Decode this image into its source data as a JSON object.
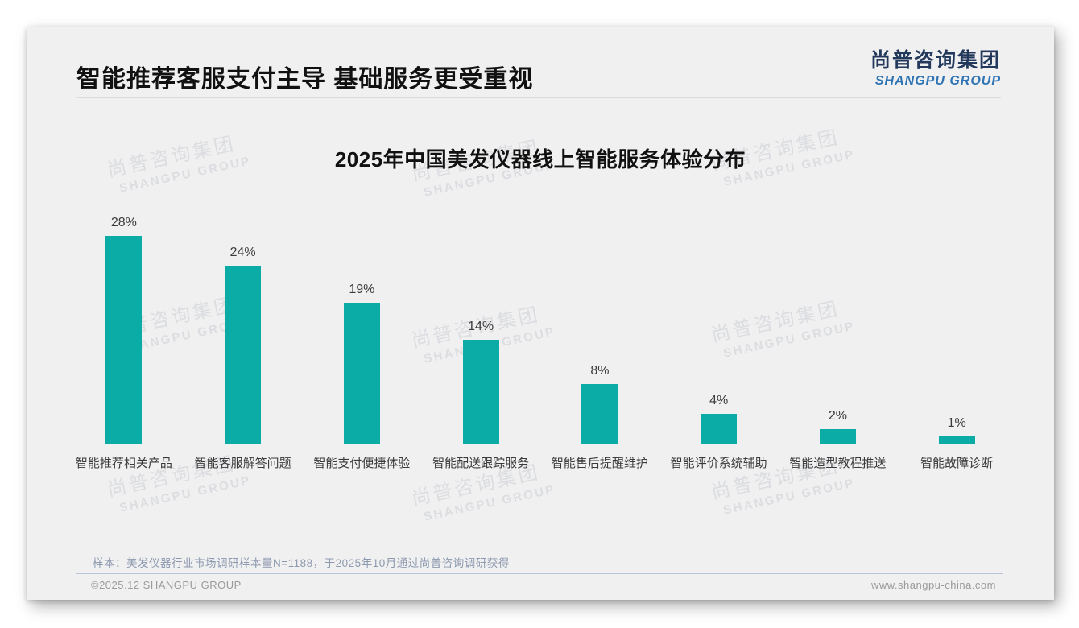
{
  "page": {
    "title": "智能推荐客服支付主导 基础服务更受重视",
    "logo": {
      "cn": "尚普咨询集团",
      "en": "SHANGPU GROUP"
    },
    "watermark": {
      "cn": "尚普咨询集团",
      "en": "SHANGPU GROUP"
    },
    "note": "样本：美发仪器行业市场调研样本量N=1188，于2025年10月通过尚普咨询调研获得",
    "footer": {
      "left": "©2025.12 SHANGPU GROUP",
      "right": "www.shangpu-china.com"
    }
  },
  "chart_data": {
    "type": "bar",
    "title": "2025年中国美发仪器线上智能服务体验分布",
    "categories": [
      "智能推荐相关产品",
      "智能客服解答问题",
      "智能支付便捷体验",
      "智能配送跟踪服务",
      "智能售后提醒维护",
      "智能评价系统辅助",
      "智能造型教程推送",
      "智能故障诊断"
    ],
    "values": [
      28,
      24,
      19,
      14,
      8,
      4,
      2,
      1
    ],
    "unit": "%",
    "data_labels": true,
    "bar_color": "#0aaca5",
    "xlabel": "",
    "ylabel": "",
    "ylim": [
      0,
      30
    ],
    "grid": false,
    "legend": false
  }
}
